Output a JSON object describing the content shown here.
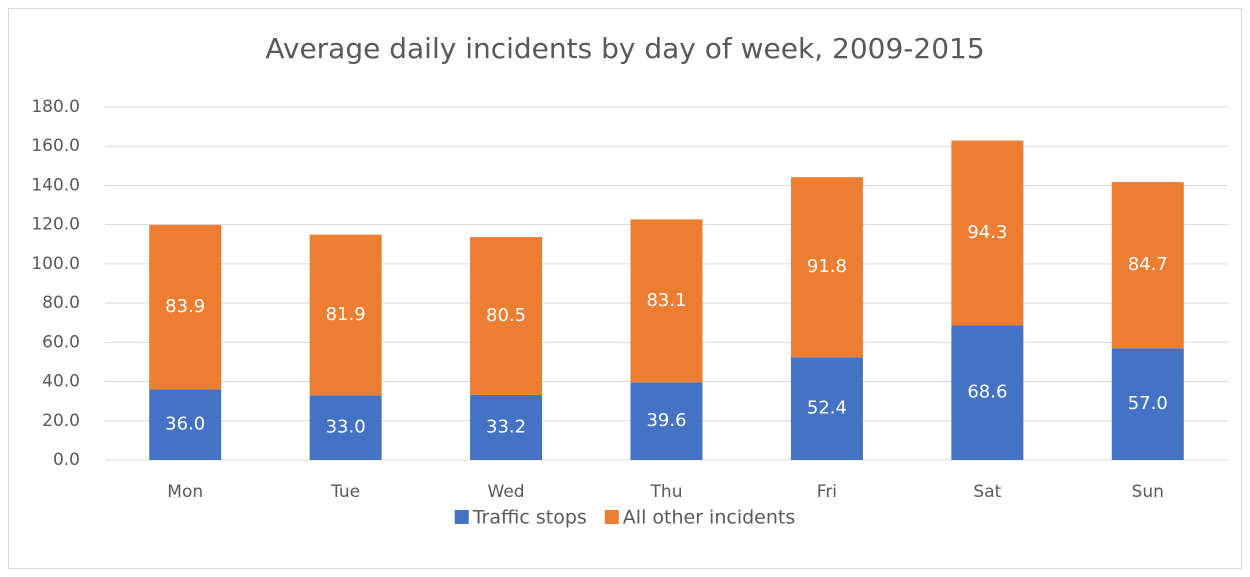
{
  "chart_data": {
    "type": "stacked-bar",
    "title": "Average daily incidents by day of week, 2009-2015",
    "categories": [
      "Mon",
      "Tue",
      "Wed",
      "Thu",
      "Fri",
      "Sat",
      "Sun"
    ],
    "series": [
      {
        "name": "Traffic stops",
        "color": "#4472c4",
        "values": [
          36.0,
          33.0,
          33.2,
          39.6,
          52.4,
          68.6,
          57.0
        ],
        "value_labels": [
          "36.0",
          "33.0",
          "33.2",
          "39.6",
          "52.4",
          "68.6",
          "57.0"
        ]
      },
      {
        "name": "All other incidents",
        "color": "#ed7d31",
        "values": [
          83.9,
          81.9,
          80.5,
          83.1,
          91.8,
          94.3,
          84.7
        ],
        "value_labels": [
          "83.9",
          "81.9",
          "80.5",
          "83.1",
          "91.8",
          "94.3",
          "84.7"
        ]
      }
    ],
    "ylim": [
      0,
      180
    ],
    "yticks": [
      {
        "value": 0,
        "label": "0.0"
      },
      {
        "value": 20,
        "label": "20.0"
      },
      {
        "value": 40,
        "label": "40.0"
      },
      {
        "value": 60,
        "label": "60.0"
      },
      {
        "value": 80,
        "label": "80.0"
      },
      {
        "value": 100,
        "label": "100.0"
      },
      {
        "value": 120,
        "label": "120.0"
      },
      {
        "value": 140,
        "label": "140.0"
      },
      {
        "value": 160,
        "label": "160.0"
      },
      {
        "value": 180,
        "label": "180.0"
      }
    ],
    "grid": true,
    "legend": "bottom"
  }
}
